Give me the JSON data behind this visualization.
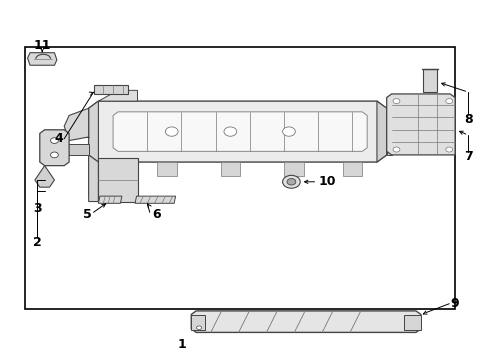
{
  "bg_color": "#ffffff",
  "border_color": "#000000",
  "gray": "#444444",
  "lgray": "#777777",
  "font_size": 9
}
